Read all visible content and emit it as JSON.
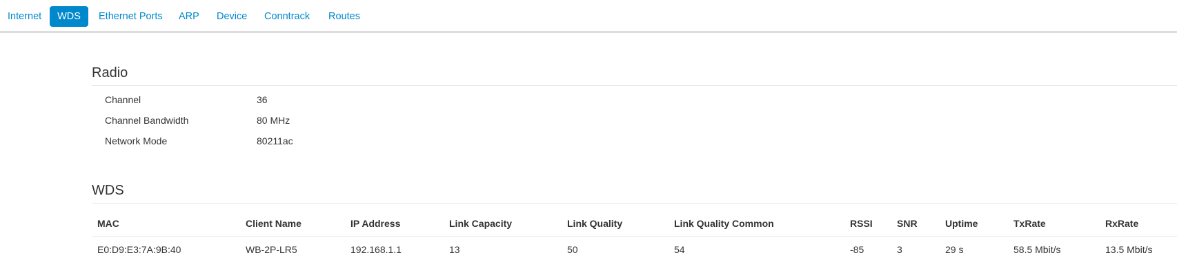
{
  "tabs": [
    {
      "label": "Internet"
    },
    {
      "label": "WDS",
      "active": true
    },
    {
      "label": "Ethernet Ports"
    },
    {
      "label": "ARP"
    },
    {
      "label": "Device"
    },
    {
      "label": "Conntrack"
    },
    {
      "label": "Routes"
    }
  ],
  "radio": {
    "title": "Radio",
    "rows": [
      {
        "label": "Channel",
        "value": "36"
      },
      {
        "label": "Channel Bandwidth",
        "value": "80 MHz"
      },
      {
        "label": "Network Mode",
        "value": "80211ac"
      }
    ]
  },
  "wds": {
    "title": "WDS",
    "columns": [
      "MAC",
      "Client Name",
      "IP Address",
      "Link Capacity",
      "Link Quality",
      "Link Quality Common",
      "RSSI",
      "SNR",
      "Uptime",
      "TxRate",
      "RxRate"
    ],
    "rows": [
      [
        "E0:D9:E3:7A:9B:40",
        "WB-2P-LR5",
        "192.168.1.1",
        "13",
        "50",
        "54",
        "-85",
        "3",
        "29 s",
        "58.5 Mbit/s",
        "13.5 Mbit/s"
      ]
    ]
  },
  "colors": {
    "accent": "#0088cc"
  }
}
